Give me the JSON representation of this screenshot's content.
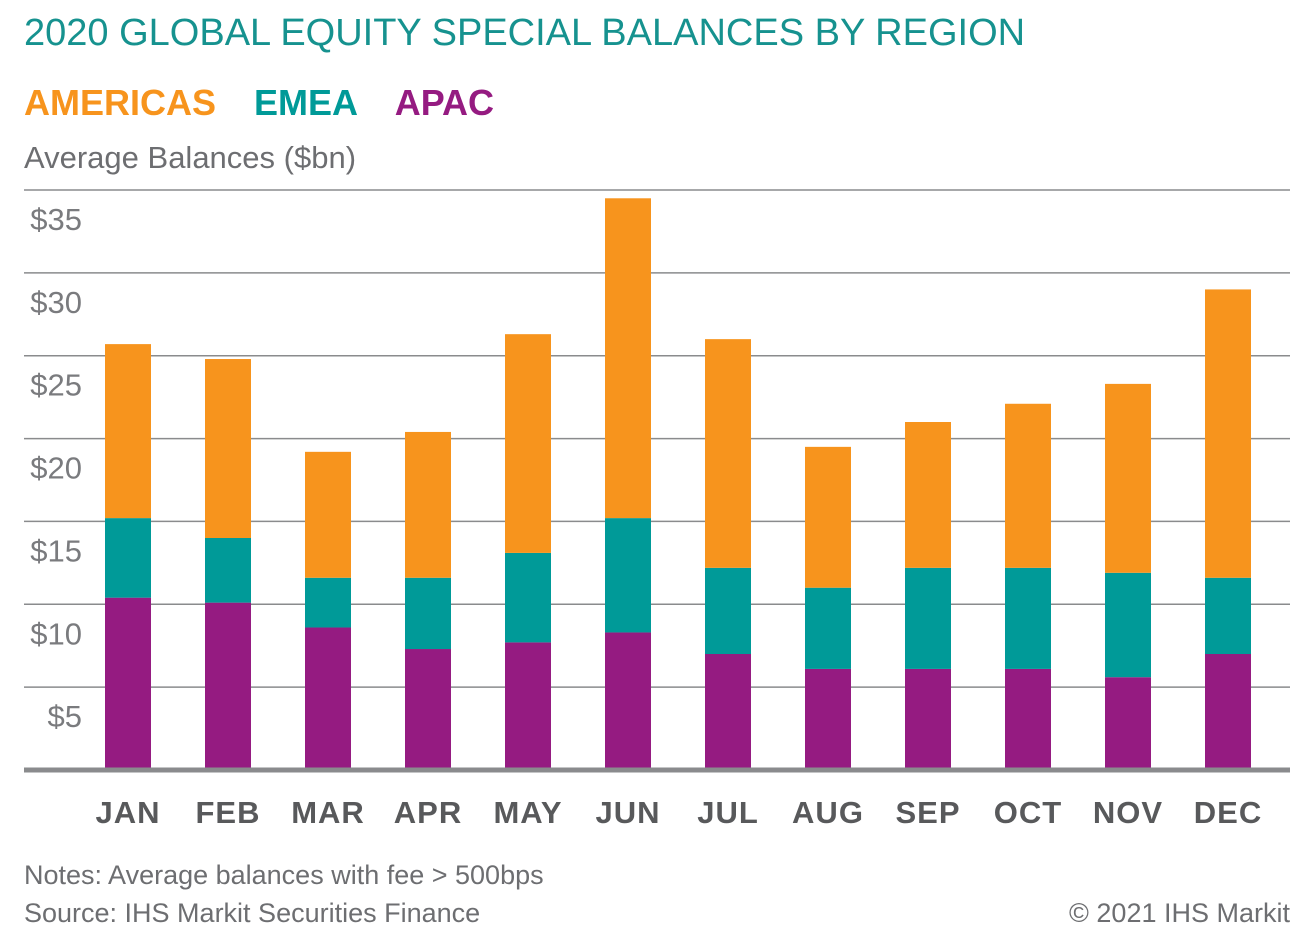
{
  "chart_data": {
    "type": "bar",
    "stacked": true,
    "title": "2020 GLOBAL EQUITY SPECIAL BALANCES BY REGION",
    "ylabel": "Average Balances ($bn)",
    "xlabel": "",
    "ylim": [
      0,
      35
    ],
    "yticks": [
      5,
      10,
      15,
      20,
      25,
      30,
      35
    ],
    "ytick_labels": [
      "$5",
      "$10",
      "$15",
      "$20",
      "$25",
      "$30",
      "$35"
    ],
    "grid": true,
    "legend_placement": "top-left",
    "categories": [
      "JAN",
      "FEB",
      "MAR",
      "APR",
      "MAY",
      "JUN",
      "JUL",
      "AUG",
      "SEP",
      "OCT",
      "NOV",
      "DEC"
    ],
    "series": [
      {
        "name": "APAC",
        "color": "#951b81",
        "values": [
          10.4,
          10.1,
          8.6,
          7.3,
          7.7,
          8.3,
          7.0,
          6.1,
          6.1,
          6.1,
          5.6,
          7.0
        ]
      },
      {
        "name": "EMEA",
        "color": "#009a98",
        "values": [
          4.8,
          3.9,
          3.0,
          4.3,
          5.4,
          6.9,
          5.2,
          4.9,
          6.1,
          6.1,
          6.3,
          4.6
        ]
      },
      {
        "name": "AMERICAS",
        "color": "#f7941d",
        "values": [
          10.5,
          10.8,
          7.6,
          8.8,
          13.2,
          19.3,
          13.8,
          8.5,
          8.8,
          9.9,
          11.4,
          17.4
        ]
      }
    ],
    "legend": [
      "AMERICAS",
      "EMEA",
      "APAC"
    ]
  },
  "notes": "Notes: Average balances with fee > 500bps",
  "source": "Source: IHS Markit Securities Finance",
  "copyright": "© 2021 IHS Markit"
}
